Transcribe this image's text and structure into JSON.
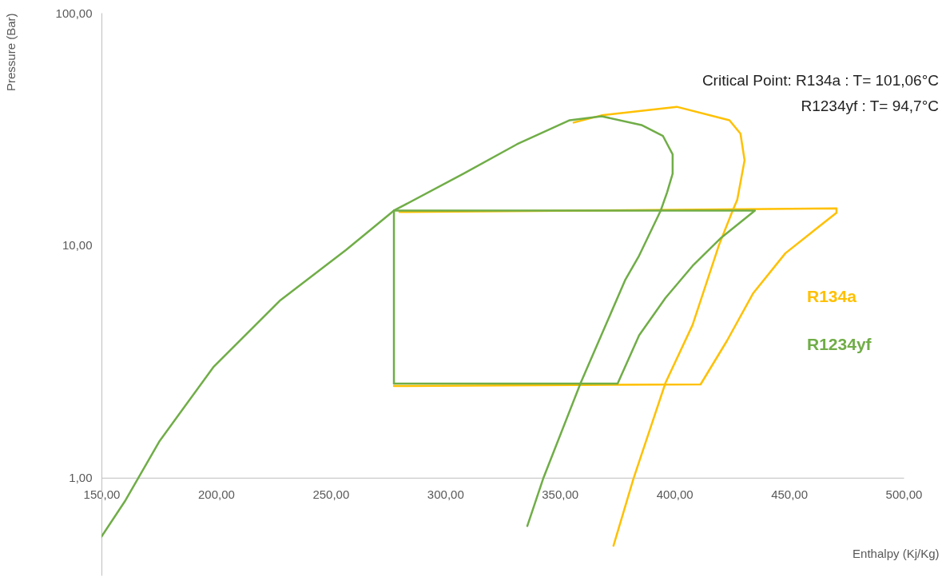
{
  "chart_data": {
    "type": "line",
    "xlabel": "Enthalpy (Kj/Kg)",
    "ylabel": "Pressure (Bar)",
    "annotations": [
      "Critical Point: R134a : T= 101,06°C",
      "R1234yf : T= 94,7°C"
    ],
    "series": [
      {
        "name": "R134a",
        "color": "#ffc000",
        "x": [
          356.0,
          368.2,
          401.0,
          424.0,
          428.8,
          430.6,
          427.4,
          425.4,
          419.4,
          407.9,
          396.1,
          382.1,
          373.4
        ],
        "values": [
          33.7,
          36.2,
          39.4,
          34.5,
          30.2,
          23.2,
          15.7,
          14.1,
          10.0,
          4.54,
          2.56,
          0.99,
          0.51
        ]
      },
      {
        "color": "#ffc000",
        "x": [
          280.0,
          470.7,
          470.7,
          448.4,
          434.4,
          422.9,
          411.4,
          277.6
        ],
        "values": [
          13.9,
          14.4,
          13.8,
          9.24,
          6.23,
          3.88,
          2.52,
          2.48
        ]
      },
      {
        "name": "R1234yf",
        "color": "#70ad47",
        "x": [
          150,
          160.5,
          175.4,
          198.8,
          227.7,
          256.7,
          277.6,
          307.9,
          331.3,
          354.3,
          368.2,
          385.6,
          395.0,
          399.2,
          399.2,
          396.8,
          394.0,
          384.6,
          378.6,
          359.1,
          342.7,
          335.8
        ],
        "values": [
          0.558,
          0.8,
          1.44,
          2.99,
          5.76,
          9.54,
          14.1,
          20.3,
          27.2,
          34.5,
          35.9,
          32.9,
          29.5,
          24.6,
          20.3,
          16.9,
          14.1,
          9.03,
          7.12,
          2.56,
          0.99,
          0.62
        ]
      },
      {
        "color": "#70ad47",
        "x": [
          277.6,
          435.1,
          420.5,
          407.9,
          396.1,
          384.6,
          375.2,
          277.6
        ],
        "values": [
          14.1,
          14.1,
          10.8,
          8.15,
          5.94,
          4.1,
          2.54,
          2.54
        ]
      },
      {
        "color": "#70ad47",
        "x": [
          277.6,
          277.6
        ],
        "values": [
          2.54,
          14.1
        ]
      }
    ],
    "xlim": [
      150,
      500
    ],
    "ylim": [
      0.38,
      100
    ],
    "xticks": [
      {
        "value": 150,
        "label": "150,00"
      },
      {
        "value": 200,
        "label": "200,00"
      },
      {
        "value": 250,
        "label": "250,00"
      },
      {
        "value": 300,
        "label": "300,00"
      },
      {
        "value": 350,
        "label": "350,00"
      },
      {
        "value": 400,
        "label": "400,00"
      },
      {
        "value": 450,
        "label": "450,00"
      },
      {
        "value": 500,
        "label": "500,00"
      }
    ],
    "yticks": [
      {
        "value": 1,
        "label": "1,00"
      },
      {
        "value": 10,
        "label": "10,00"
      },
      {
        "value": 100,
        "label": "100,00"
      }
    ],
    "log": true,
    "grid": false,
    "legend": "right"
  }
}
